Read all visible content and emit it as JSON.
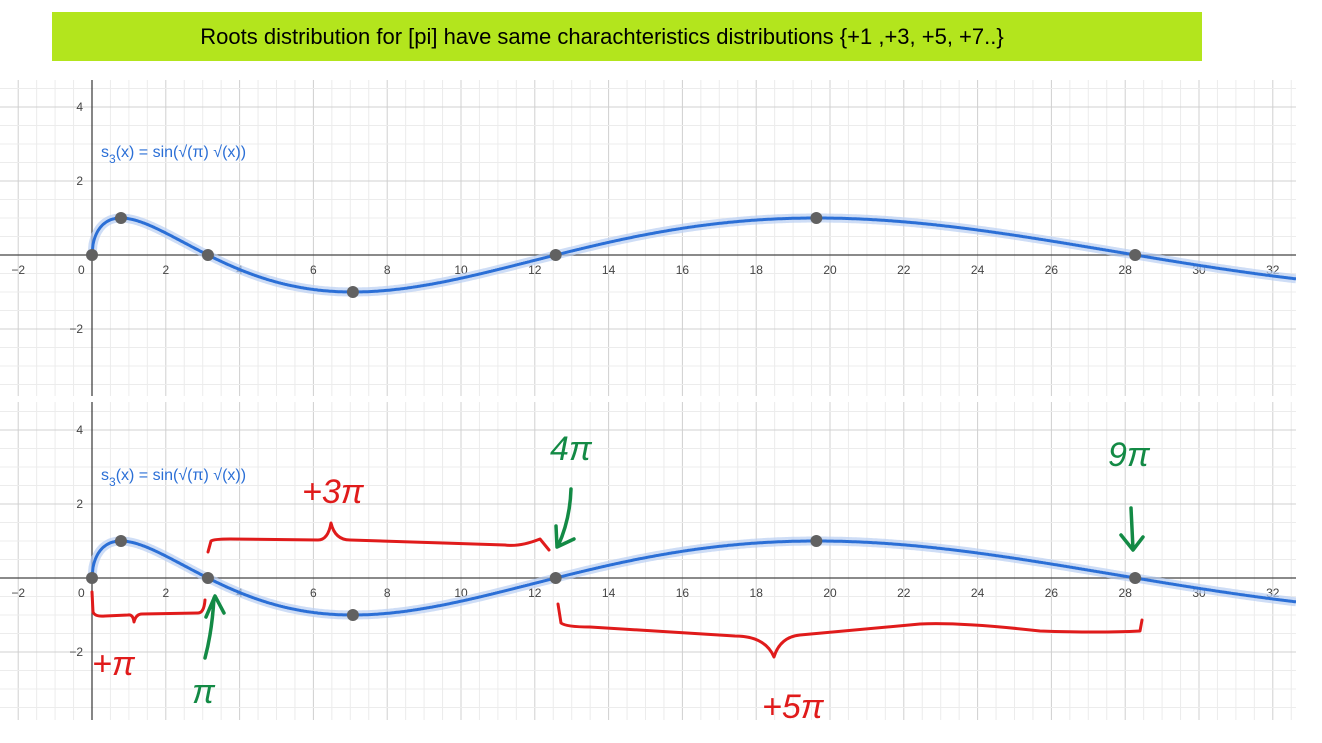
{
  "banner": {
    "text": "Roots distribution for [pi] have same charachteristics distributions {+1 ,+3, +5, +7..}"
  },
  "colors": {
    "banner_bg": "#b3e51d",
    "curve": "#2b6fd6",
    "curve_halo": "#b9cff2",
    "point": "#616161",
    "annot_red": "#e01b1b",
    "annot_green": "#138a45"
  },
  "chart_data": [
    {
      "type": "line",
      "function_label": {
        "base": "s",
        "sub": "3",
        "rest": "(x) = sin(√(π) √(x))"
      },
      "xlim": [
        -2.3,
        32.8
      ],
      "ylim": [
        -3.6,
        4.8
      ],
      "x_ticks": [
        -2,
        0,
        2,
        4,
        6,
        8,
        10,
        12,
        14,
        16,
        18,
        20,
        22,
        24,
        26,
        28,
        30,
        32
      ],
      "x_tick_labels": [
        "−2",
        "0",
        "2",
        "4",
        "6",
        "8",
        "10",
        "12",
        "14",
        "16",
        "18",
        "20",
        "22",
        "24",
        "26",
        "28",
        "30",
        "32"
      ],
      "y_ticks": [
        -2,
        2,
        4
      ],
      "y_tick_labels": [
        "−2",
        "2",
        "4"
      ],
      "grid": true,
      "points": [
        {
          "x": 0,
          "y": 0
        },
        {
          "x": 0.785,
          "y": 1
        },
        {
          "x": 3.1416,
          "y": 0
        },
        {
          "x": 7.07,
          "y": -1
        },
        {
          "x": 12.566,
          "y": 0
        },
        {
          "x": 19.63,
          "y": 1
        },
        {
          "x": 28.27,
          "y": 0
        }
      ]
    },
    {
      "type": "line",
      "function_label": {
        "base": "s",
        "sub": "3",
        "rest": "(x) = sin(√(π) √(x))"
      },
      "xlim": [
        -2.3,
        32.8
      ],
      "ylim": [
        -3.8,
        4.8
      ],
      "x_ticks": [
        -2,
        0,
        2,
        4,
        6,
        8,
        10,
        12,
        14,
        16,
        18,
        20,
        22,
        24,
        26,
        28,
        30,
        32
      ],
      "x_tick_labels": [
        "−2",
        "0",
        "2",
        "4",
        "6",
        "8",
        "10",
        "12",
        "14",
        "16",
        "18",
        "20",
        "22",
        "24",
        "26",
        "28",
        "30",
        "32"
      ],
      "y_ticks": [
        -2,
        2,
        4
      ],
      "y_tick_labels": [
        "−2",
        "2",
        "4"
      ],
      "grid": true,
      "points": [
        {
          "x": 0,
          "y": 0
        },
        {
          "x": 0.785,
          "y": 1
        },
        {
          "x": 3.1416,
          "y": 0
        },
        {
          "x": 7.07,
          "y": -1
        },
        {
          "x": 12.566,
          "y": 0
        },
        {
          "x": 19.63,
          "y": 1
        },
        {
          "x": 28.27,
          "y": 0
        }
      ],
      "annotations": [
        {
          "text": "+π",
          "color": "red"
        },
        {
          "text": "π",
          "color": "green"
        },
        {
          "text": "+3π",
          "color": "red"
        },
        {
          "text": "4π",
          "color": "green"
        },
        {
          "text": "+5π",
          "color": "red"
        },
        {
          "text": "9π",
          "color": "green"
        }
      ]
    }
  ]
}
